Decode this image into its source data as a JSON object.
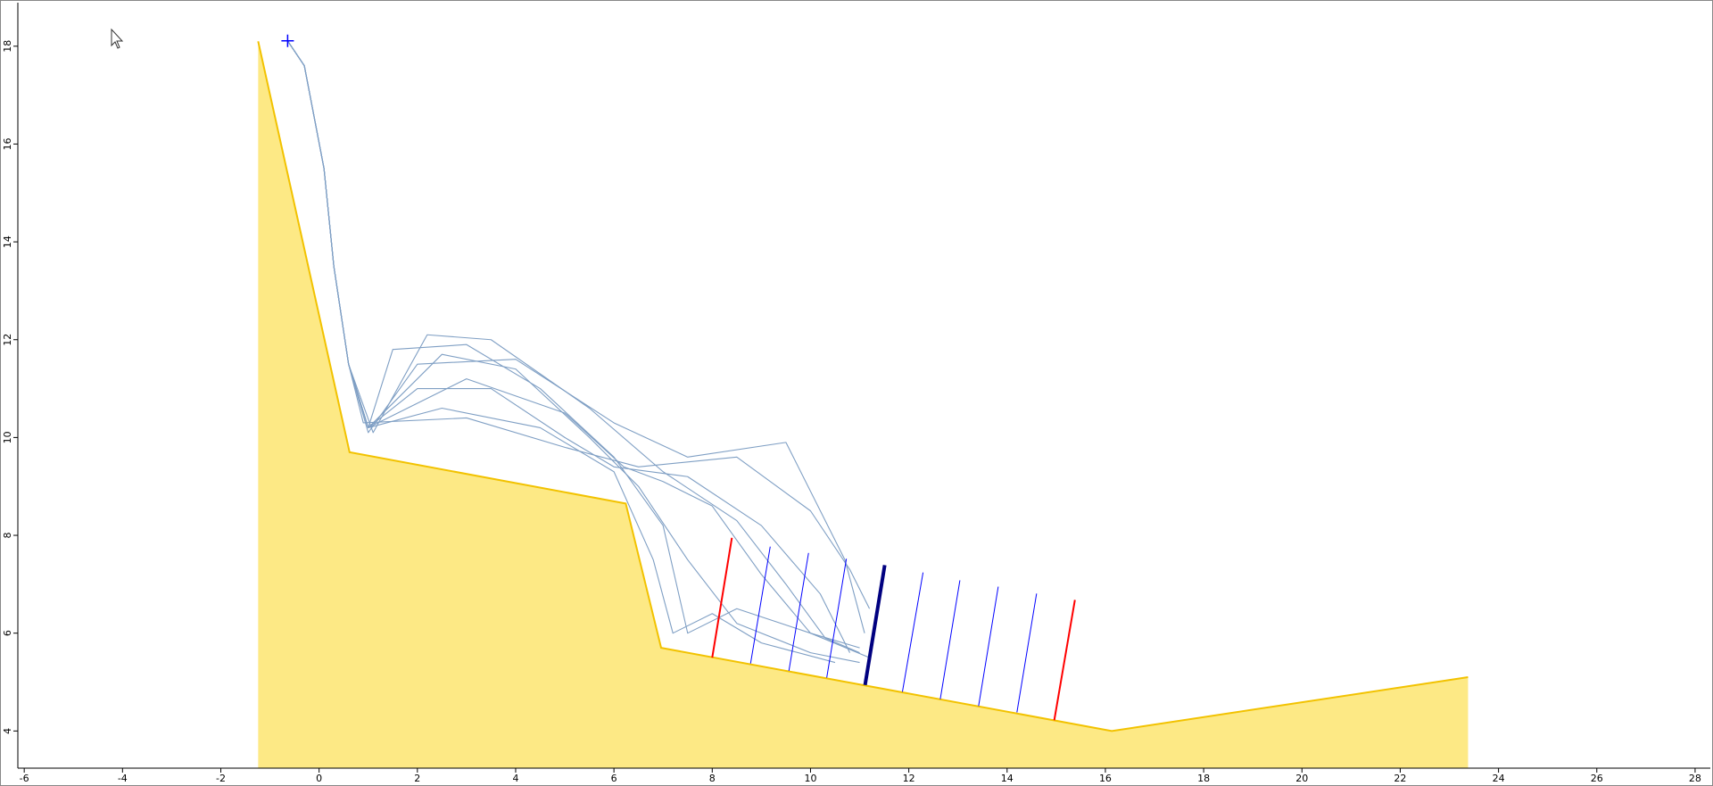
{
  "chart_data": {
    "type": "rockfall",
    "xlim": [
      -6.13,
      28.31
    ],
    "ylim": [
      3.24,
      18.89
    ],
    "xticks": [
      -6,
      -4,
      -2,
      0,
      2,
      4,
      6,
      8,
      10,
      12,
      14,
      16,
      18,
      20,
      22,
      24,
      26,
      28
    ],
    "yticks": [
      4,
      6,
      8,
      10,
      12,
      14,
      16,
      18
    ],
    "profile": {
      "color": "#f2c200",
      "fill_color": "#fde985",
      "x": [
        -1.24,
        0.62,
        6.24,
        6.96,
        16.13,
        23.38
      ],
      "y": [
        18.1,
        9.7,
        8.65,
        5.7,
        4.0,
        5.1
      ]
    },
    "seeder": {
      "color": "#0000ff",
      "x": -0.64,
      "y": 18.11
    },
    "trajectory_color": "#7f9fc4",
    "series": [
      {
        "x": [
          -0.64,
          -0.3,
          0.1,
          0.3,
          0.6,
          1.0,
          2.5,
          4,
          5.5,
          6.5,
          7.5,
          8.5,
          10,
          11
        ],
        "y": [
          18.11,
          17.6,
          15.5,
          13.5,
          11.5,
          10.2,
          11.7,
          11.4,
          10,
          9.0,
          7.5,
          6.2,
          5.6,
          5.4
        ]
      },
      {
        "x": [
          -0.64,
          -0.3,
          0.1,
          0.3,
          0.6,
          1.0,
          2,
          3.5,
          5,
          6,
          7.5,
          9,
          10.2,
          10.8
        ],
        "y": [
          18.11,
          17.6,
          15.5,
          13.5,
          11.5,
          10.2,
          11,
          11,
          10,
          9.4,
          9.2,
          8.2,
          6.8,
          5.6
        ]
      },
      {
        "x": [
          -0.64,
          -0.3,
          0.1,
          0.3,
          0.6,
          1.0,
          1.5,
          3,
          4.5,
          6,
          7,
          7.5,
          8.5,
          10,
          11.2
        ],
        "y": [
          18.11,
          17.6,
          15.5,
          13.5,
          11.5,
          10.2,
          11.8,
          11.9,
          11,
          9.6,
          8.2,
          6,
          6.5,
          6,
          5.5
        ]
      },
      {
        "x": [
          -0.64,
          -0.3,
          0.1,
          0.3,
          0.6,
          0.9,
          3,
          5,
          6.5,
          8.5,
          10,
          10.8,
          11.2
        ],
        "y": [
          18.11,
          17.6,
          15.5,
          13.5,
          11.5,
          10.3,
          10.4,
          9.8,
          9.4,
          9.6,
          8.5,
          7.3,
          6.5
        ]
      },
      {
        "x": [
          -0.64,
          -0.3,
          0.1,
          0.3,
          0.6,
          1,
          2,
          4,
          6,
          7.5,
          9.5,
          10.7,
          11.1
        ],
        "y": [
          18.11,
          17.6,
          15.5,
          13.5,
          11.5,
          10.1,
          11.5,
          11.6,
          10.3,
          9.6,
          9.9,
          7.5,
          6.0
        ]
      },
      {
        "x": [
          -0.64,
          -0.3,
          0.1,
          0.3,
          0.6,
          1,
          2.5,
          4.5,
          6,
          6.8,
          7.2,
          8,
          9,
          10.5
        ],
        "y": [
          18.11,
          17.6,
          15.5,
          13.5,
          11.5,
          10.2,
          10.6,
          10.2,
          9.3,
          7.5,
          6.0,
          6.4,
          5.8,
          5.4
        ]
      },
      {
        "x": [
          -0.64,
          -0.3,
          0.1,
          0.3,
          0.6,
          1.1,
          2.2,
          3.5,
          5.5,
          7,
          8.5,
          9.5,
          10.3,
          11
        ],
        "y": [
          18.11,
          17.6,
          15.5,
          13.5,
          11.5,
          10.1,
          12.1,
          12.0,
          10.6,
          9.3,
          8.3,
          7.0,
          5.9,
          5.6
        ]
      },
      {
        "x": [
          -0.64,
          -0.3,
          0.1,
          0.3,
          0.6,
          1.0,
          3,
          5,
          6.2,
          7,
          8,
          9,
          10,
          11
        ],
        "y": [
          18.11,
          17.6,
          15.5,
          13.5,
          11.5,
          10.2,
          11.2,
          10.5,
          9.4,
          9.1,
          8.6,
          7.2,
          6.0,
          5.7
        ]
      }
    ],
    "barriers": [
      {
        "color": "#ff0000",
        "width": 2,
        "x": [
          8.0,
          8.4
        ],
        "y": [
          5.5,
          7.95
        ]
      },
      {
        "color": "#0000ff",
        "width": 1,
        "x": [
          8.78,
          9.18
        ],
        "y": [
          5.38,
          7.77
        ]
      },
      {
        "color": "#0000ff",
        "width": 1,
        "x": [
          9.56,
          9.96
        ],
        "y": [
          5.23,
          7.64
        ]
      },
      {
        "color": "#0000ff",
        "width": 1,
        "x": [
          10.33,
          10.73
        ],
        "y": [
          5.09,
          7.52
        ]
      },
      {
        "color": "#000080",
        "width": 4,
        "x": [
          11.11,
          11.51
        ],
        "y": [
          4.94,
          7.39
        ]
      },
      {
        "color": "#0000ff",
        "width": 1,
        "x": [
          11.87,
          12.29
        ],
        "y": [
          4.8,
          7.24
        ]
      },
      {
        "color": "#0000ff",
        "width": 1,
        "x": [
          12.64,
          13.04
        ],
        "y": [
          4.65,
          7.08
        ]
      },
      {
        "color": "#0000ff",
        "width": 1,
        "x": [
          13.42,
          13.82
        ],
        "y": [
          4.51,
          6.95
        ]
      },
      {
        "color": "#0000ff",
        "width": 1,
        "x": [
          14.2,
          14.6
        ],
        "y": [
          4.38,
          6.81
        ]
      },
      {
        "color": "#ff0000",
        "width": 2,
        "x": [
          14.96,
          15.38
        ],
        "y": [
          4.22,
          6.68
        ]
      }
    ]
  }
}
